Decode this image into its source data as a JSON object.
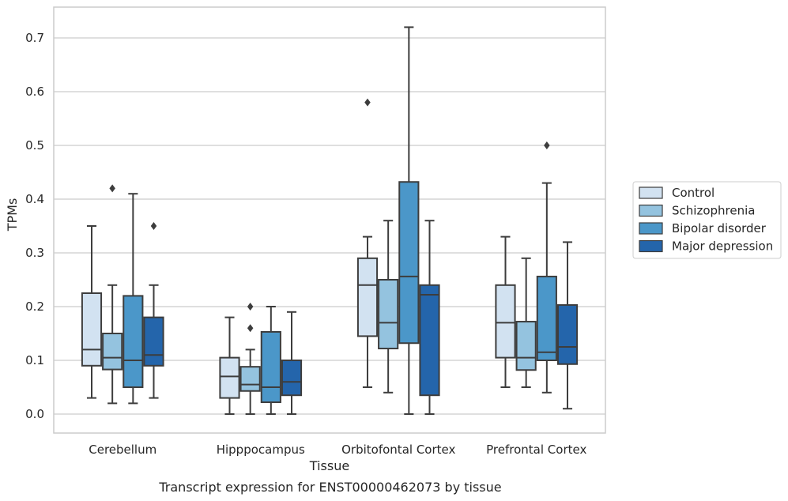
{
  "chart_data": {
    "type": "box",
    "title": "",
    "caption": "Transcript expression for ENST00000462073 by tissue",
    "xlabel": "Tissue",
    "ylabel": "TPMs",
    "ylim": [
      -0.035,
      0.76
    ],
    "yticks": [
      "0.0",
      "0.1",
      "0.2",
      "0.3",
      "0.4",
      "0.5",
      "0.6",
      "0.7"
    ],
    "ytick_values": [
      0,
      0.1,
      0.2,
      0.3,
      0.4,
      0.5,
      0.6,
      0.7
    ],
    "grid": "horizontal",
    "legend_position": "right",
    "categories": [
      "Cerebellum",
      "Hipppocampus",
      "Orbitofontal Cortex",
      "Prefrontal Cortex"
    ],
    "colors": [
      "#d2e2f1",
      "#94c3df",
      "#4b97c9",
      "#2465ab"
    ],
    "series": [
      {
        "name": "Control",
        "boxes": [
          {
            "q1": 0.09,
            "median": 0.12,
            "q3": 0.225,
            "whisker_low": 0.03,
            "whisker_high": 0.35,
            "outliers": []
          },
          {
            "q1": 0.03,
            "median": 0.07,
            "q3": 0.105,
            "whisker_low": 0.0,
            "whisker_high": 0.18,
            "outliers": []
          },
          {
            "q1": 0.145,
            "median": 0.24,
            "q3": 0.29,
            "whisker_low": 0.05,
            "whisker_high": 0.33,
            "outliers": [
              0.58
            ]
          },
          {
            "q1": 0.105,
            "median": 0.17,
            "q3": 0.24,
            "whisker_low": 0.05,
            "whisker_high": 0.33,
            "outliers": []
          }
        ]
      },
      {
        "name": "Schizophrenia",
        "boxes": [
          {
            "q1": 0.083,
            "median": 0.105,
            "q3": 0.15,
            "whisker_low": 0.02,
            "whisker_high": 0.24,
            "outliers": [
              0.42
            ]
          },
          {
            "q1": 0.043,
            "median": 0.055,
            "q3": 0.088,
            "whisker_low": 0.0,
            "whisker_high": 0.12,
            "outliers": [
              0.16,
              0.2
            ]
          },
          {
            "q1": 0.122,
            "median": 0.17,
            "q3": 0.25,
            "whisker_low": 0.04,
            "whisker_high": 0.36,
            "outliers": []
          },
          {
            "q1": 0.082,
            "median": 0.105,
            "q3": 0.172,
            "whisker_low": 0.05,
            "whisker_high": 0.29,
            "outliers": []
          }
        ]
      },
      {
        "name": "Bipolar disorder",
        "boxes": [
          {
            "q1": 0.05,
            "median": 0.1,
            "q3": 0.22,
            "whisker_low": 0.02,
            "whisker_high": 0.41,
            "outliers": []
          },
          {
            "q1": 0.022,
            "median": 0.05,
            "q3": 0.153,
            "whisker_low": 0.0,
            "whisker_high": 0.2,
            "outliers": []
          },
          {
            "q1": 0.132,
            "median": 0.256,
            "q3": 0.432,
            "whisker_low": 0.0,
            "whisker_high": 0.72,
            "outliers": []
          },
          {
            "q1": 0.1,
            "median": 0.115,
            "q3": 0.256,
            "whisker_low": 0.04,
            "whisker_high": 0.43,
            "outliers": [
              0.5
            ]
          }
        ]
      },
      {
        "name": "Major depression",
        "boxes": [
          {
            "q1": 0.09,
            "median": 0.11,
            "q3": 0.18,
            "whisker_low": 0.03,
            "whisker_high": 0.24,
            "outliers": [
              0.35
            ]
          },
          {
            "q1": 0.035,
            "median": 0.06,
            "q3": 0.1,
            "whisker_low": 0.0,
            "whisker_high": 0.19,
            "outliers": []
          },
          {
            "q1": 0.035,
            "median": 0.222,
            "q3": 0.24,
            "whisker_low": 0.0,
            "whisker_high": 0.36,
            "outliers": []
          },
          {
            "q1": 0.093,
            "median": 0.125,
            "q3": 0.203,
            "whisker_low": 0.01,
            "whisker_high": 0.32,
            "outliers": []
          }
        ]
      }
    ]
  }
}
